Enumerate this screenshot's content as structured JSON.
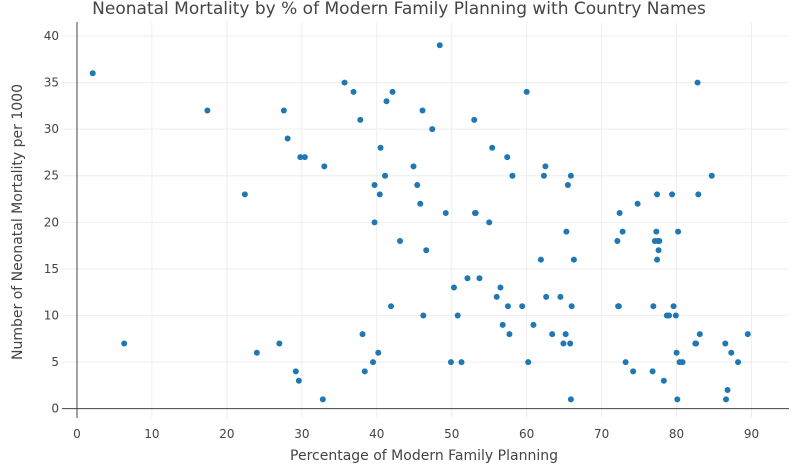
{
  "chart_data": {
    "type": "scatter",
    "title": "Neonatal Mortality by % of Modern Family Planning with Country Names",
    "xlabel": "Percentage of Modern Family Planning",
    "ylabel": "Number of Neonatal Mortality per 1000",
    "xlim": [
      -2,
      95
    ],
    "ylim": [
      -1,
      41.5
    ],
    "x_ticks": [
      0,
      10,
      20,
      30,
      40,
      50,
      60,
      70,
      80,
      90
    ],
    "y_ticks": [
      0,
      5,
      10,
      15,
      20,
      25,
      30,
      35,
      40
    ],
    "grid": true,
    "marker_color": "#1f77b4",
    "points": [
      {
        "x": 2.1,
        "y": 36
      },
      {
        "x": 6.3,
        "y": 7
      },
      {
        "x": 17.4,
        "y": 32
      },
      {
        "x": 22.4,
        "y": 23
      },
      {
        "x": 24.0,
        "y": 6
      },
      {
        "x": 27.0,
        "y": 7
      },
      {
        "x": 27.6,
        "y": 32
      },
      {
        "x": 28.1,
        "y": 29
      },
      {
        "x": 29.2,
        "y": 4
      },
      {
        "x": 29.6,
        "y": 3
      },
      {
        "x": 29.8,
        "y": 27
      },
      {
        "x": 30.4,
        "y": 27
      },
      {
        "x": 32.8,
        "y": 1
      },
      {
        "x": 33.0,
        "y": 26
      },
      {
        "x": 35.7,
        "y": 35
      },
      {
        "x": 36.9,
        "y": 34
      },
      {
        "x": 37.8,
        "y": 31
      },
      {
        "x": 38.1,
        "y": 8
      },
      {
        "x": 38.4,
        "y": 4
      },
      {
        "x": 39.5,
        "y": 5
      },
      {
        "x": 39.7,
        "y": 24
      },
      {
        "x": 39.7,
        "y": 20
      },
      {
        "x": 40.2,
        "y": 6
      },
      {
        "x": 40.4,
        "y": 23
      },
      {
        "x": 40.5,
        "y": 28
      },
      {
        "x": 41.1,
        "y": 25
      },
      {
        "x": 41.3,
        "y": 33
      },
      {
        "x": 41.9,
        "y": 11
      },
      {
        "x": 42.1,
        "y": 34
      },
      {
        "x": 43.1,
        "y": 18
      },
      {
        "x": 44.9,
        "y": 26
      },
      {
        "x": 45.4,
        "y": 24
      },
      {
        "x": 45.8,
        "y": 22
      },
      {
        "x": 46.1,
        "y": 32
      },
      {
        "x": 46.2,
        "y": 10
      },
      {
        "x": 46.6,
        "y": 17
      },
      {
        "x": 47.4,
        "y": 30
      },
      {
        "x": 48.4,
        "y": 39
      },
      {
        "x": 49.2,
        "y": 21
      },
      {
        "x": 49.9,
        "y": 5
      },
      {
        "x": 50.3,
        "y": 13
      },
      {
        "x": 50.8,
        "y": 10
      },
      {
        "x": 51.3,
        "y": 5
      },
      {
        "x": 52.1,
        "y": 14
      },
      {
        "x": 53.0,
        "y": 31
      },
      {
        "x": 53.1,
        "y": 21
      },
      {
        "x": 53.2,
        "y": 21
      },
      {
        "x": 53.7,
        "y": 14
      },
      {
        "x": 55.0,
        "y": 20
      },
      {
        "x": 55.4,
        "y": 28
      },
      {
        "x": 56.0,
        "y": 12
      },
      {
        "x": 56.5,
        "y": 13
      },
      {
        "x": 56.8,
        "y": 9
      },
      {
        "x": 57.4,
        "y": 27
      },
      {
        "x": 57.5,
        "y": 11
      },
      {
        "x": 57.7,
        "y": 8
      },
      {
        "x": 58.1,
        "y": 25
      },
      {
        "x": 59.4,
        "y": 11
      },
      {
        "x": 60.0,
        "y": 34
      },
      {
        "x": 60.2,
        "y": 5
      },
      {
        "x": 60.9,
        "y": 9
      },
      {
        "x": 61.9,
        "y": 16
      },
      {
        "x": 62.3,
        "y": 25
      },
      {
        "x": 62.5,
        "y": 26
      },
      {
        "x": 62.6,
        "y": 12
      },
      {
        "x": 63.4,
        "y": 8
      },
      {
        "x": 64.5,
        "y": 12
      },
      {
        "x": 64.9,
        "y": 7
      },
      {
        "x": 65.2,
        "y": 8
      },
      {
        "x": 65.3,
        "y": 19
      },
      {
        "x": 65.5,
        "y": 24
      },
      {
        "x": 65.8,
        "y": 7
      },
      {
        "x": 65.9,
        "y": 25
      },
      {
        "x": 65.9,
        "y": 1
      },
      {
        "x": 66.0,
        "y": 11
      },
      {
        "x": 66.3,
        "y": 16
      },
      {
        "x": 72.1,
        "y": 18
      },
      {
        "x": 72.2,
        "y": 11
      },
      {
        "x": 72.3,
        "y": 11
      },
      {
        "x": 72.4,
        "y": 21
      },
      {
        "x": 72.8,
        "y": 19
      },
      {
        "x": 73.2,
        "y": 5
      },
      {
        "x": 74.2,
        "y": 4
      },
      {
        "x": 74.8,
        "y": 22
      },
      {
        "x": 76.8,
        "y": 4
      },
      {
        "x": 76.9,
        "y": 11
      },
      {
        "x": 77.1,
        "y": 18
      },
      {
        "x": 77.3,
        "y": 19
      },
      {
        "x": 77.4,
        "y": 23
      },
      {
        "x": 77.4,
        "y": 16
      },
      {
        "x": 77.5,
        "y": 18
      },
      {
        "x": 77.6,
        "y": 17
      },
      {
        "x": 77.7,
        "y": 18
      },
      {
        "x": 78.3,
        "y": 3
      },
      {
        "x": 78.7,
        "y": 10
      },
      {
        "x": 79.0,
        "y": 10
      },
      {
        "x": 79.4,
        "y": 23
      },
      {
        "x": 79.6,
        "y": 11
      },
      {
        "x": 79.9,
        "y": 10
      },
      {
        "x": 80.0,
        "y": 6
      },
      {
        "x": 80.1,
        "y": 1
      },
      {
        "x": 80.2,
        "y": 19
      },
      {
        "x": 80.4,
        "y": 5
      },
      {
        "x": 80.8,
        "y": 5
      },
      {
        "x": 82.5,
        "y": 7
      },
      {
        "x": 82.6,
        "y": 7
      },
      {
        "x": 82.8,
        "y": 35
      },
      {
        "x": 82.9,
        "y": 23
      },
      {
        "x": 83.1,
        "y": 8
      },
      {
        "x": 84.7,
        "y": 25
      },
      {
        "x": 86.5,
        "y": 7
      },
      {
        "x": 86.6,
        "y": 1
      },
      {
        "x": 86.8,
        "y": 2
      },
      {
        "x": 87.3,
        "y": 6
      },
      {
        "x": 88.2,
        "y": 5
      },
      {
        "x": 89.5,
        "y": 8
      }
    ]
  }
}
